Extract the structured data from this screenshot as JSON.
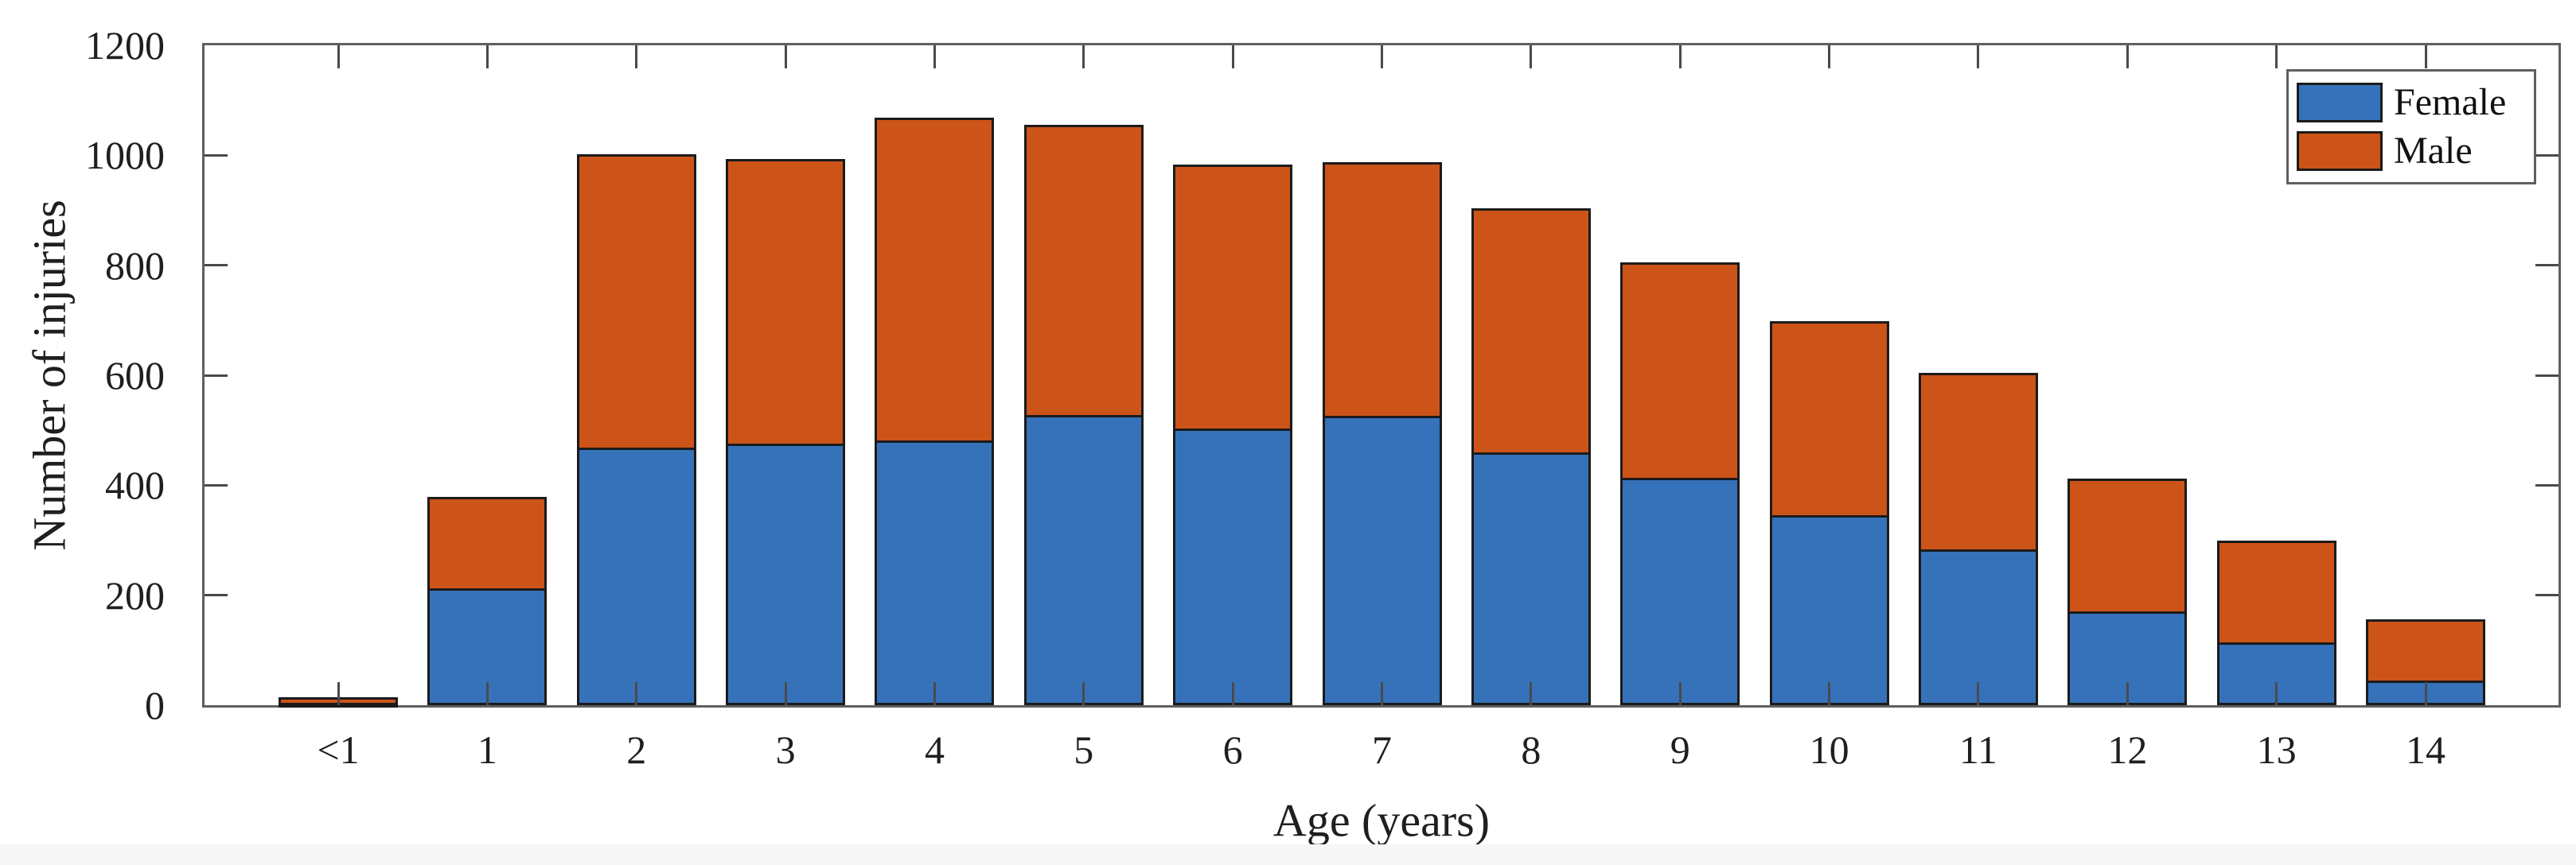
{
  "figure": {
    "background": "#ffffff"
  },
  "chart_data": {
    "type": "bar",
    "stacked": true,
    "title": "",
    "xlabel": "Age (years)",
    "ylabel": "Number of injuries",
    "categories": [
      "<1",
      "1",
      "2",
      "3",
      "4",
      "5",
      "6",
      "7",
      "8",
      "9",
      "10",
      "11",
      "12",
      "13",
      "14"
    ],
    "series": [
      {
        "name": "Female",
        "color": "#3672B9",
        "values": [
          5,
          212,
          468,
          476,
          481,
          527,
          503,
          526,
          460,
          414,
          346,
          284,
          170,
          114,
          45
        ]
      },
      {
        "name": "Male",
        "color": "#CC5419",
        "values": [
          9,
          167,
          534,
          517,
          587,
          529,
          480,
          461,
          443,
          391,
          353,
          320,
          242,
          186,
          111
        ]
      }
    ],
    "stack_totals": [
      14,
      379,
      1002,
      993,
      1068,
      1056,
      983,
      987,
      903,
      805,
      699,
      604,
      412,
      300,
      156
    ],
    "ylim": [
      0,
      1200
    ],
    "yticks": [
      0,
      200,
      400,
      600,
      800,
      1000,
      1200
    ],
    "grid": false,
    "legend_position": "top-right",
    "bar_edge_color": "#1b1b1b",
    "axis_color": "#5f5f5f",
    "text_color": "#1f1f1f"
  }
}
